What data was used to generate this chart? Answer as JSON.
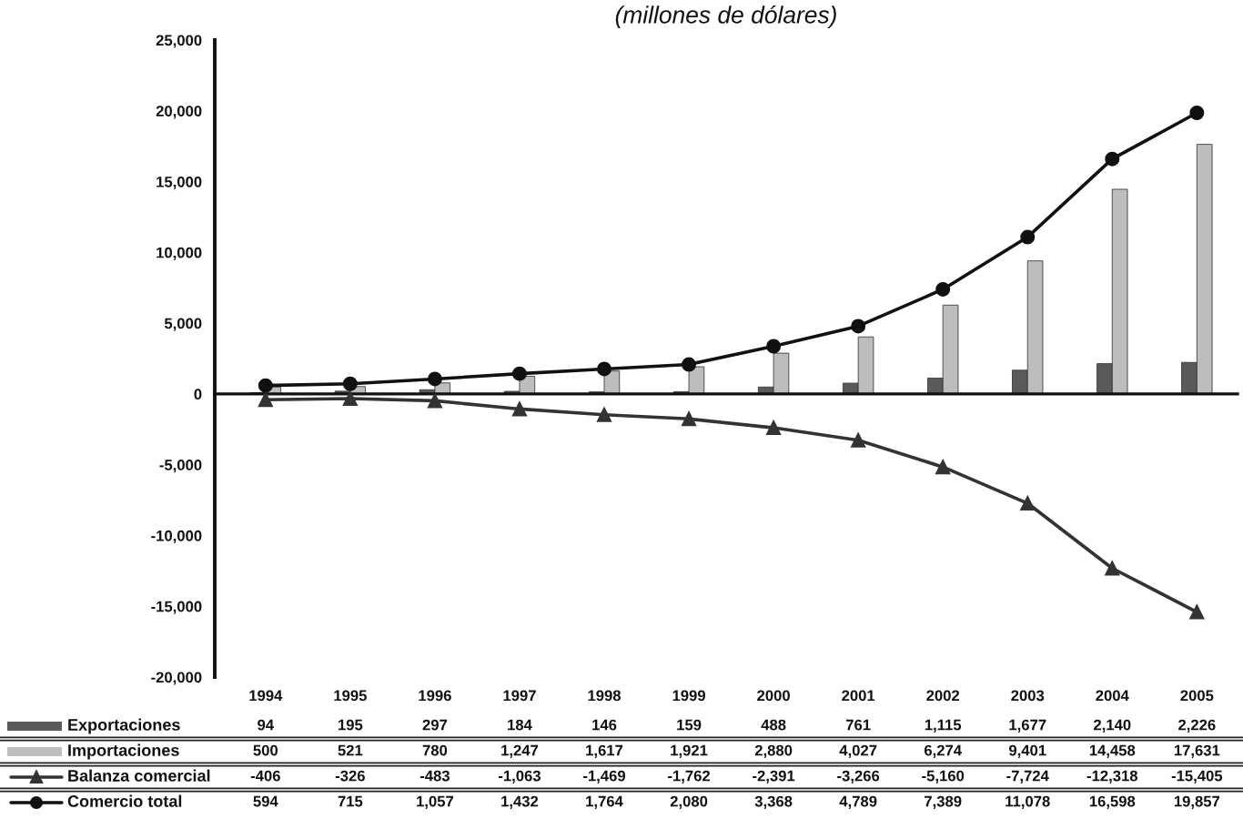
{
  "chart_data": {
    "type": "bar",
    "title": "(millones de dólares)",
    "categories": [
      "1994",
      "1995",
      "1996",
      "1997",
      "1998",
      "1999",
      "2000",
      "2001",
      "2002",
      "2003",
      "2004",
      "2005"
    ],
    "series": [
      {
        "name": "Exportaciones",
        "color": "#5a5a5a",
        "values": [
          94,
          195,
          297,
          184,
          146,
          159,
          488,
          761,
          1115,
          1677,
          2140,
          2226
        ],
        "value_labels": [
          "94",
          "195",
          "297",
          "184",
          "146",
          "159",
          "488",
          "761",
          "1,115",
          "1,677",
          "2,140",
          "2,226"
        ]
      },
      {
        "name": "Importaciones",
        "color": "#bdbdbd",
        "values": [
          500,
          521,
          780,
          1247,
          1617,
          1921,
          2880,
          4027,
          6274,
          9401,
          14458,
          17631
        ],
        "value_labels": [
          "500",
          "521",
          "780",
          "1,247",
          "1,617",
          "1,921",
          "2,880",
          "4,027",
          "6,274",
          "9,401",
          "14,458",
          "17,631"
        ]
      },
      {
        "name": "Balanza comercial",
        "type": "line",
        "color": "#333333",
        "marker": "triangle",
        "values": [
          -406,
          -326,
          -483,
          -1063,
          -1469,
          -1762,
          -2391,
          -3266,
          -5160,
          -7724,
          -12318,
          -15405
        ],
        "value_labels": [
          "-406",
          "-326",
          "-483",
          "-1,063",
          "-1,469",
          "-1,762",
          "-2,391",
          "-3,266",
          "-5,160",
          "-7,724",
          "-12,318",
          "-15,405"
        ]
      },
      {
        "name": "Comercio total",
        "type": "line",
        "color": "#111111",
        "marker": "circle",
        "values": [
          594,
          715,
          1057,
          1432,
          1764,
          2080,
          3368,
          4789,
          7389,
          11078,
          16598,
          19857
        ],
        "value_labels": [
          "594",
          "715",
          "1,057",
          "1,432",
          "1,764",
          "2,080",
          "3,368",
          "4,789",
          "7,389",
          "11,078",
          "16,598",
          "19,857"
        ]
      }
    ],
    "ylim": [
      -20000,
      25000
    ],
    "yticks": [
      {
        "value": -20000,
        "label": "-20,000"
      },
      {
        "value": -15000,
        "label": "-15,000"
      },
      {
        "value": -10000,
        "label": "-10,000"
      },
      {
        "value": -5000,
        "label": "-5,000"
      },
      0,
      {
        "value": 5000,
        "label": "5,000"
      },
      {
        "value": 10000,
        "label": "10,000"
      },
      {
        "value": 15000,
        "label": "15,000"
      },
      {
        "value": 20000,
        "label": "20,000"
      },
      {
        "value": 25000,
        "label": "25,000"
      }
    ],
    "legend": "bottom left"
  }
}
